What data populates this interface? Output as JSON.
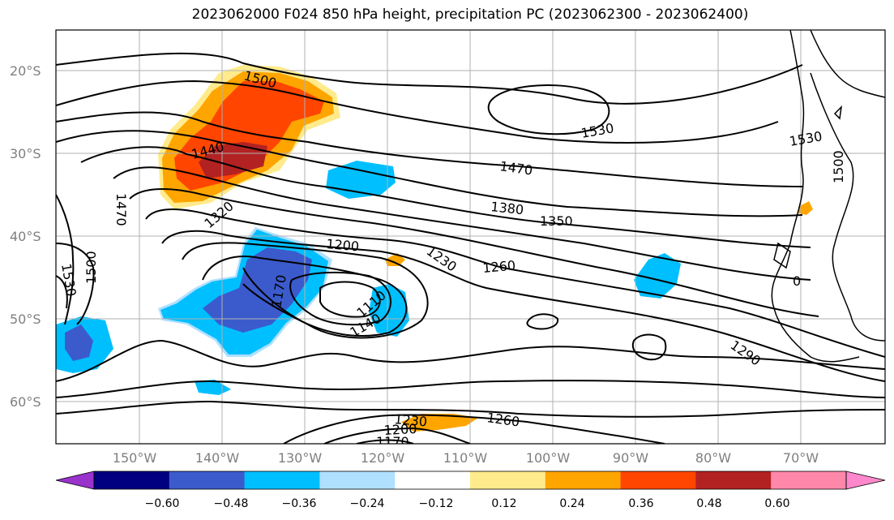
{
  "title": "2023062000 F024 850 hPa height, precipitation PC (2023062300 - 2023062400)",
  "lat_labels": [
    "20°S",
    "30°S",
    "40°S",
    "50°S",
    "60°S"
  ],
  "lon_labels": [
    "150°W",
    "140°W",
    "130°W",
    "120°W",
    "110°W",
    "100°W",
    "90°W",
    "80°W",
    "70°W"
  ],
  "contour_labels": [
    "1500",
    "1530",
    "1470",
    "1440",
    "1380",
    "1350",
    "1320",
    "1200",
    "1230",
    "1260",
    "1170",
    "1110",
    "1140",
    "1290",
    "1530",
    "1500",
    "1470",
    "1500",
    "1530",
    "1230",
    "1200",
    "1170",
    "1260",
    "0"
  ],
  "colorbar": {
    "ticks": [
      "−0.60",
      "−0.48",
      "−0.36",
      "−0.24",
      "−0.12",
      "0.12",
      "0.24",
      "0.36",
      "0.48",
      "0.60"
    ],
    "colors": [
      "#9933cc",
      "#000080",
      "#3b5bcc",
      "#00bfff",
      "#b0e0ff",
      "#ffffff",
      "#ffeb8c",
      "#ffa500",
      "#ff4500",
      "#b22222",
      "#ff88aa",
      "#ff88cc"
    ]
  },
  "palette": {
    "pos1": "#ffeb8c",
    "pos2": "#ffa500",
    "pos3": "#ff4500",
    "pos4": "#b22222",
    "neg1": "#b0e0ff",
    "neg2": "#00bfff",
    "neg3": "#3b5bcc"
  }
}
